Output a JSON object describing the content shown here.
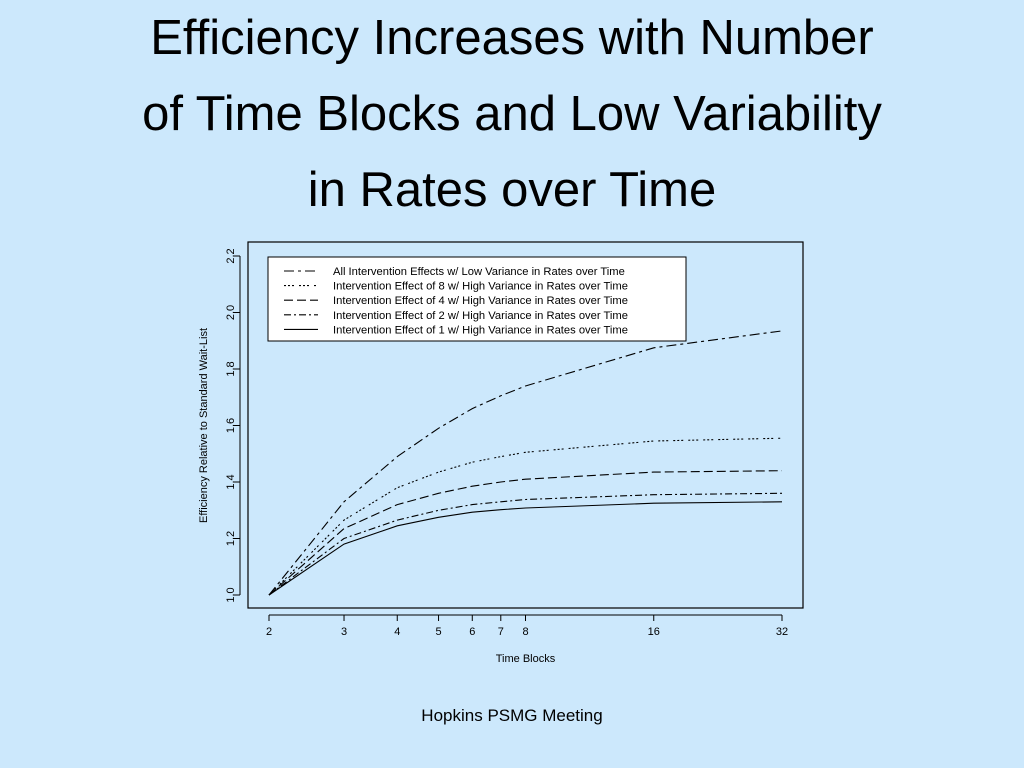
{
  "slide": {
    "title_lines": [
      "Efficiency Increases with Number",
      "of Time Blocks and Low Variability",
      "in Rates over Time"
    ],
    "footer": "Hopkins PSMG Meeting"
  },
  "chart_data": {
    "type": "line",
    "xlabel": "Time Blocks",
    "ylabel": "Efficiency Relative to Standard Wait-List",
    "x_scale": "log",
    "x_ticks": [
      2,
      3,
      4,
      5,
      6,
      7,
      8,
      16,
      32
    ],
    "x_tick_labels": [
      "2",
      "3",
      "4",
      "5",
      "6",
      "7",
      "8",
      "16",
      "32"
    ],
    "xlim": [
      2,
      32
    ],
    "ylim": [
      1.0,
      2.2
    ],
    "y_ticks": [
      1.0,
      1.2,
      1.4,
      1.6,
      1.8,
      2.0,
      2.2
    ],
    "y_tick_labels": [
      "1.0",
      "1.2",
      "1.4",
      "1.6",
      "1.8",
      "2.0",
      "2.2"
    ],
    "grid": false,
    "legend_position": "top-left",
    "series": [
      {
        "name": "All Intervention Effects w/ Low Variance in Rates over Time",
        "dash": "10,4,3,4",
        "points": [
          [
            2,
            1.0
          ],
          [
            3,
            1.33
          ],
          [
            4,
            1.49
          ],
          [
            5,
            1.59
          ],
          [
            6,
            1.66
          ],
          [
            7,
            1.705
          ],
          [
            8,
            1.74
          ],
          [
            16,
            1.875
          ],
          [
            32,
            1.935
          ]
        ]
      },
      {
        "name": "Intervention Effect of  8 w/ High Variance in Rates over Time",
        "dash": "2,2,2,2,2,5",
        "points": [
          [
            2,
            1.0
          ],
          [
            3,
            1.265
          ],
          [
            4,
            1.38
          ],
          [
            5,
            1.435
          ],
          [
            6,
            1.47
          ],
          [
            7,
            1.49
          ],
          [
            8,
            1.505
          ],
          [
            16,
            1.545
          ],
          [
            32,
            1.555
          ]
        ]
      },
      {
        "name": "Intervention Effect of  4 w/ High Variance in Rates over Time",
        "dash": "9,4",
        "points": [
          [
            2,
            1.0
          ],
          [
            3,
            1.235
          ],
          [
            4,
            1.32
          ],
          [
            5,
            1.36
          ],
          [
            6,
            1.385
          ],
          [
            7,
            1.4
          ],
          [
            8,
            1.41
          ],
          [
            16,
            1.435
          ],
          [
            32,
            1.44
          ]
        ]
      },
      {
        "name": "Intervention Effect of  2 w/ High Variance in Rates over Time",
        "dash": "7,3,2,3",
        "points": [
          [
            2,
            1.0
          ],
          [
            3,
            1.2
          ],
          [
            4,
            1.265
          ],
          [
            5,
            1.3
          ],
          [
            6,
            1.32
          ],
          [
            7,
            1.33
          ],
          [
            8,
            1.338
          ],
          [
            16,
            1.355
          ],
          [
            32,
            1.36
          ]
        ]
      },
      {
        "name": "Intervention Effect of  1 w/ High Variance in Rates over Time",
        "dash": "",
        "points": [
          [
            2,
            1.0
          ],
          [
            3,
            1.18
          ],
          [
            4,
            1.245
          ],
          [
            5,
            1.275
          ],
          [
            6,
            1.293
          ],
          [
            7,
            1.302
          ],
          [
            8,
            1.308
          ],
          [
            16,
            1.325
          ],
          [
            32,
            1.33
          ]
        ]
      }
    ]
  }
}
